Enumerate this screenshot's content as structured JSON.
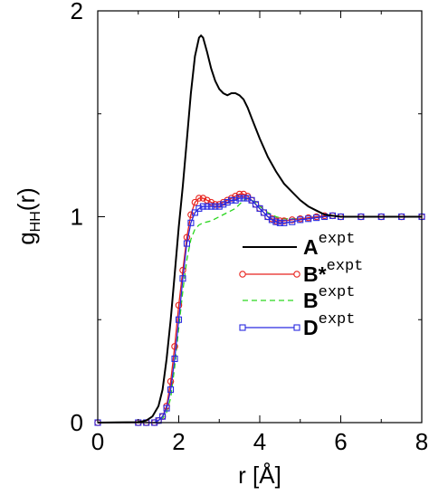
{
  "chart_data": {
    "type": "line",
    "xlabel": "r [Å]",
    "ylabel_main": "g",
    "ylabel_sub": "HH",
    "ylabel_tail": "(r)",
    "xlim": [
      0,
      8
    ],
    "ylim": [
      0,
      2
    ],
    "x_ticks": [
      "0",
      "2",
      "4",
      "6",
      "8"
    ],
    "y_ticks": [
      "0",
      "1",
      "2"
    ],
    "grid": false,
    "legend_position": "right",
    "series": [
      {
        "name": "A",
        "name_sup": "expt",
        "color": "#000000",
        "style": "solid",
        "marker": "none",
        "x": [
          0,
          1.0,
          1.2,
          1.35,
          1.5,
          1.6,
          1.7,
          1.8,
          1.9,
          2.0,
          2.1,
          2.2,
          2.3,
          2.4,
          2.5,
          2.55,
          2.6,
          2.7,
          2.8,
          2.9,
          3.0,
          3.1,
          3.2,
          3.3,
          3.4,
          3.5,
          3.6,
          3.7,
          3.8,
          3.9,
          4.0,
          4.2,
          4.4,
          4.6,
          4.8,
          5.0,
          5.2,
          5.4,
          5.6,
          5.8,
          6.0,
          6.5,
          7.0,
          7.5,
          8.0
        ],
        "y": [
          0,
          0.002,
          0.01,
          0.03,
          0.08,
          0.16,
          0.31,
          0.5,
          0.72,
          0.95,
          1.15,
          1.37,
          1.6,
          1.78,
          1.87,
          1.88,
          1.87,
          1.8,
          1.72,
          1.66,
          1.62,
          1.6,
          1.59,
          1.6,
          1.6,
          1.59,
          1.57,
          1.53,
          1.48,
          1.43,
          1.38,
          1.29,
          1.22,
          1.16,
          1.12,
          1.08,
          1.05,
          1.03,
          1.01,
          1.005,
          1.0,
          1.0,
          1.0,
          1.0,
          1.0
        ]
      },
      {
        "name": "B*",
        "name_sup": "expt",
        "color": "#e8231d",
        "style": "solid",
        "marker": "circle",
        "x": [
          0,
          1.0,
          1.2,
          1.4,
          1.5,
          1.6,
          1.7,
          1.8,
          1.9,
          2.0,
          2.1,
          2.2,
          2.3,
          2.4,
          2.5,
          2.6,
          2.7,
          2.8,
          2.9,
          3.0,
          3.1,
          3.2,
          3.3,
          3.4,
          3.5,
          3.6,
          3.7,
          3.8,
          3.9,
          4.0,
          4.1,
          4.2,
          4.3,
          4.4,
          4.5,
          4.6,
          4.8,
          5.0,
          5.2,
          5.4,
          5.6,
          5.8,
          6.0,
          6.5,
          7.0,
          7.5,
          8.0
        ],
        "y": [
          0,
          0.0,
          0.0,
          0.0,
          0.01,
          0.03,
          0.08,
          0.2,
          0.37,
          0.57,
          0.74,
          0.9,
          1.01,
          1.07,
          1.09,
          1.09,
          1.08,
          1.07,
          1.06,
          1.06,
          1.07,
          1.08,
          1.09,
          1.1,
          1.11,
          1.11,
          1.1,
          1.08,
          1.06,
          1.04,
          1.02,
          1.0,
          0.99,
          0.98,
          0.98,
          0.98,
          0.985,
          0.99,
          0.995,
          1.0,
          1.005,
          1.005,
          1.0,
          1.0,
          1.0,
          1.0,
          1.0
        ]
      },
      {
        "name": "B",
        "name_sup": "expt",
        "color": "#2bd61f",
        "style": "dashed",
        "marker": "none",
        "x": [
          0,
          1.0,
          1.2,
          1.4,
          1.5,
          1.6,
          1.7,
          1.8,
          1.9,
          2.0,
          2.1,
          2.2,
          2.3,
          2.4,
          2.5,
          2.6,
          2.8,
          3.0,
          3.2,
          3.4,
          3.5,
          3.6,
          3.7,
          3.8,
          3.9,
          4.0,
          4.2,
          4.4,
          4.6,
          4.8,
          5.0,
          5.2,
          5.4,
          5.6,
          5.8,
          6.0,
          6.5,
          7.0,
          7.5,
          8.0
        ],
        "y": [
          0,
          0.0,
          0.0,
          0.0,
          0.01,
          0.02,
          0.05,
          0.12,
          0.27,
          0.46,
          0.64,
          0.79,
          0.89,
          0.94,
          0.96,
          0.97,
          0.98,
          1.0,
          1.02,
          1.04,
          1.06,
          1.08,
          1.09,
          1.08,
          1.07,
          1.05,
          1.02,
          1.0,
          0.99,
          0.99,
          0.99,
          0.995,
          1.0,
          1.0,
          1.005,
          1.0,
          1.0,
          1.0,
          1.0,
          1.0
        ]
      },
      {
        "name": "D",
        "name_sup": "expt",
        "color": "#2a2ae0",
        "style": "solid",
        "marker": "square",
        "x": [
          0,
          1.0,
          1.2,
          1.4,
          1.5,
          1.6,
          1.7,
          1.8,
          1.9,
          2.0,
          2.1,
          2.2,
          2.3,
          2.4,
          2.5,
          2.6,
          2.7,
          2.8,
          2.9,
          3.0,
          3.1,
          3.2,
          3.3,
          3.4,
          3.5,
          3.6,
          3.7,
          3.8,
          3.9,
          4.0,
          4.1,
          4.2,
          4.3,
          4.4,
          4.5,
          4.6,
          4.8,
          5.0,
          5.2,
          5.4,
          5.6,
          5.8,
          6.0,
          6.5,
          7.0,
          7.5,
          8.0
        ],
        "y": [
          0,
          0.0,
          0.0,
          0.0,
          0.01,
          0.03,
          0.07,
          0.16,
          0.31,
          0.5,
          0.7,
          0.87,
          0.97,
          1.02,
          1.04,
          1.05,
          1.05,
          1.05,
          1.05,
          1.05,
          1.06,
          1.07,
          1.08,
          1.08,
          1.09,
          1.09,
          1.09,
          1.08,
          1.06,
          1.04,
          1.02,
          1.0,
          0.985,
          0.975,
          0.97,
          0.97,
          0.975,
          0.985,
          0.99,
          0.995,
          1.0,
          1.005,
          1.0,
          1.0,
          1.0,
          1.0,
          1.0
        ]
      }
    ]
  }
}
